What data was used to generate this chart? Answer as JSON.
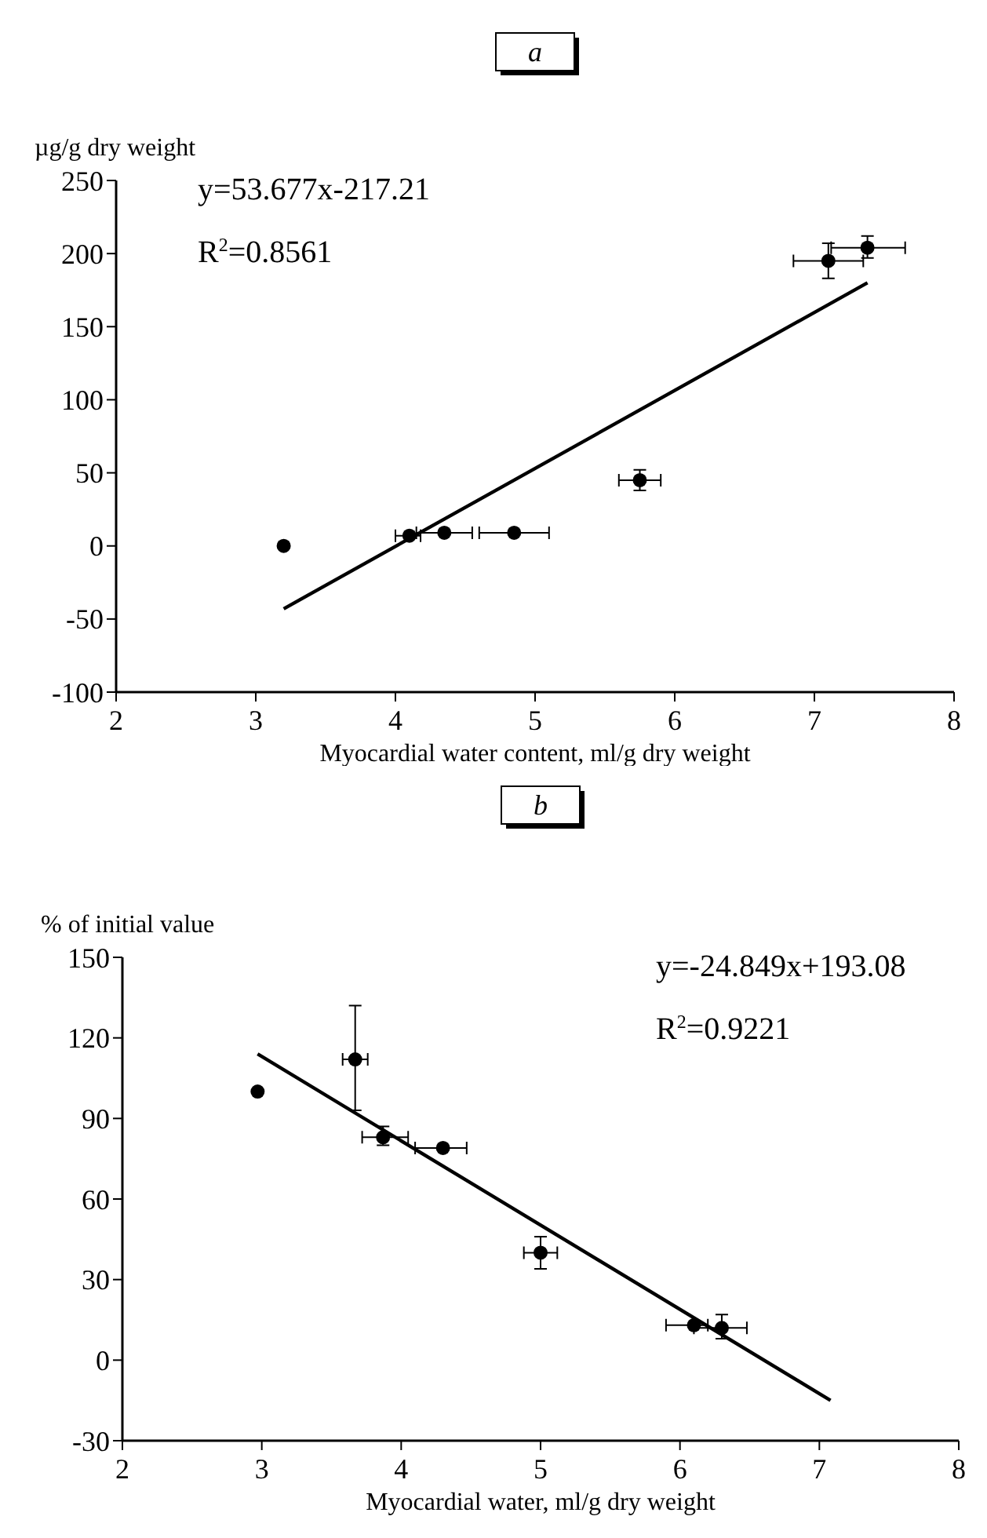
{
  "chart_data": [
    {
      "type": "scatter",
      "title": "a",
      "ylabel": "µg/g dry weight",
      "xlabel": "Myocardial water content, ml/g dry weight",
      "xlim": [
        2,
        8
      ],
      "xticks": [
        2,
        3,
        4,
        5,
        6,
        7,
        8
      ],
      "ylim": [
        -100,
        250
      ],
      "yticks": [
        -100,
        -50,
        0,
        50,
        100,
        150,
        200,
        250
      ],
      "marker": "circle",
      "annotations": [
        "y=53.677x-217.21",
        "R$^{2}$=0.8561"
      ],
      "series": [
        {
          "color": "#000000",
          "x": [
            3.2,
            4.1,
            4.35,
            4.85,
            5.75,
            7.1,
            7.38
          ],
          "values": [
            0,
            7,
            9,
            9,
            45,
            195,
            204
          ],
          "xerrors": [
            null,
            [
              4.0,
              4.18
            ],
            [
              4.15,
              4.55
            ],
            [
              4.6,
              5.1
            ],
            [
              5.6,
              5.9
            ],
            [
              6.85,
              7.35
            ],
            [
              7.12,
              7.65
            ]
          ],
          "errors": [
            null,
            null,
            null,
            null,
            [
              38,
              52
            ],
            [
              183,
              207
            ],
            [
              197,
              212
            ]
          ]
        },
        {
          "type": "line",
          "color": "#000000",
          "marker": "none",
          "x": [
            3.2,
            7.38
          ],
          "values": [
            -43,
            180
          ]
        }
      ]
    },
    {
      "type": "scatter",
      "title": "b",
      "ylabel": "% of initial value",
      "xlabel": "Myocardial water, ml/g dry weight",
      "xlim": [
        2,
        8
      ],
      "xticks": [
        2,
        3,
        4,
        5,
        6,
        7,
        8
      ],
      "ylim": [
        -30,
        150
      ],
      "yticks": [
        -30,
        0,
        30,
        60,
        90,
        120,
        150
      ],
      "marker": "circle",
      "annotations": [
        "y=-24.849x+193.08",
        "R$^{2}$=0.9221"
      ],
      "series": [
        {
          "color": "#000000",
          "x": [
            2.97,
            3.67,
            3.87,
            4.3,
            5.0,
            6.1,
            6.3
          ],
          "values": [
            100,
            112,
            83,
            79,
            40,
            13,
            12
          ],
          "xerrors": [
            null,
            [
              3.58,
              3.76
            ],
            [
              3.72,
              4.05
            ],
            [
              4.1,
              4.47
            ],
            [
              4.88,
              5.12
            ],
            [
              5.9,
              6.2
            ],
            [
              6.1,
              6.48
            ]
          ],
          "errors": [
            null,
            [
              93,
              132
            ],
            [
              80,
              87
            ],
            null,
            [
              34,
              46
            ],
            null,
            [
              8,
              17
            ]
          ]
        },
        {
          "type": "line",
          "color": "#000000",
          "marker": "none",
          "x": [
            2.97,
            7.08
          ],
          "values": [
            114,
            -15
          ]
        }
      ]
    }
  ]
}
